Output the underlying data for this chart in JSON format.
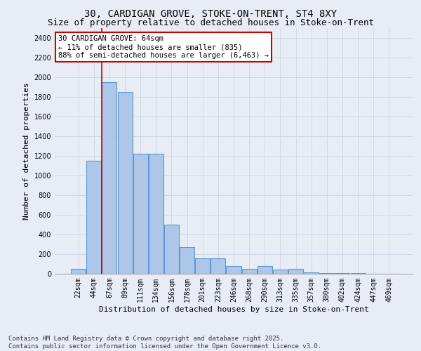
{
  "title_line1": "30, CARDIGAN GROVE, STOKE-ON-TRENT, ST4 8XY",
  "title_line2": "Size of property relative to detached houses in Stoke-on-Trent",
  "xlabel": "Distribution of detached houses by size in Stoke-on-Trent",
  "ylabel": "Number of detached properties",
  "categories": [
    "22sqm",
    "44sqm",
    "67sqm",
    "89sqm",
    "111sqm",
    "134sqm",
    "156sqm",
    "178sqm",
    "201sqm",
    "223sqm",
    "246sqm",
    "268sqm",
    "290sqm",
    "313sqm",
    "335sqm",
    "357sqm",
    "380sqm",
    "402sqm",
    "424sqm",
    "447sqm",
    "469sqm"
  ],
  "values": [
    50,
    1150,
    1950,
    1850,
    1220,
    1220,
    500,
    270,
    160,
    160,
    80,
    50,
    80,
    45,
    50,
    15,
    10,
    5,
    5,
    3,
    2
  ],
  "bar_color": "#aec6e8",
  "bar_edge_color": "#5b9bd5",
  "bar_linewidth": 0.8,
  "vline_x": 1.5,
  "vline_color": "#cc0000",
  "annotation_text": "30 CARDIGAN GROVE: 64sqm\n← 11% of detached houses are smaller (835)\n88% of semi-detached houses are larger (6,463) →",
  "annotation_box_color": "#ffffff",
  "annotation_box_edge": "#cc0000",
  "grid_color": "#d0d8e8",
  "background_color": "#e8edf5",
  "ylim": [
    0,
    2500
  ],
  "yticks": [
    0,
    200,
    400,
    600,
    800,
    1000,
    1200,
    1400,
    1600,
    1800,
    2000,
    2200,
    2400
  ],
  "footer_line1": "Contains HM Land Registry data © Crown copyright and database right 2025.",
  "footer_line2": "Contains public sector information licensed under the Open Government Licence v3.0.",
  "title_fontsize": 10,
  "subtitle_fontsize": 9,
  "axis_label_fontsize": 8,
  "tick_fontsize": 7,
  "footer_fontsize": 6.5,
  "annotation_fontsize": 7.5
}
